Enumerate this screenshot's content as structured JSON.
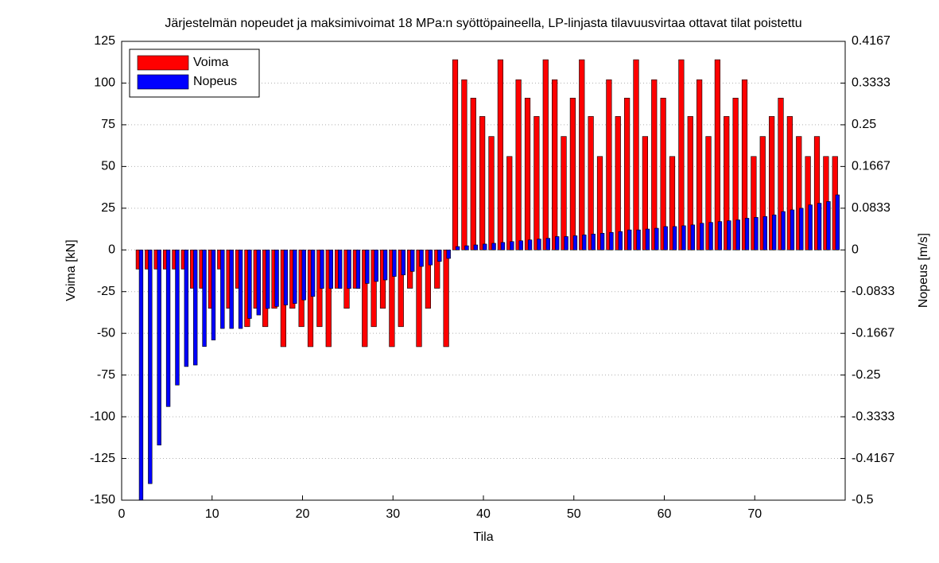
{
  "chart_data": {
    "type": "bar",
    "title": "Järjestelmän nopeudet ja maksimivoimat 18 MPa:n syöttöpaineella, LP-linjasta tilavuusvirtaa ottavat tilat poistettu",
    "xlabel": "Tila",
    "ylabel": "Voima [kN]",
    "y2label": "Nopeus [m/s]",
    "x": [
      2,
      3,
      4,
      5,
      6,
      7,
      8,
      9,
      10,
      11,
      12,
      13,
      14,
      15,
      16,
      17,
      18,
      19,
      20,
      21,
      22,
      23,
      24,
      25,
      26,
      27,
      28,
      29,
      30,
      31,
      32,
      33,
      34,
      35,
      36,
      37,
      38,
      39,
      40,
      41,
      42,
      43,
      44,
      45,
      46,
      47,
      48,
      49,
      50,
      51,
      52,
      53,
      54,
      55,
      56,
      57,
      58,
      59,
      60,
      61,
      62,
      63,
      64,
      65,
      66,
      67,
      68,
      69,
      70,
      71,
      72,
      73,
      74,
      75,
      76,
      77,
      78,
      79
    ],
    "series": [
      {
        "name": "Voima",
        "color": "#ff0000",
        "values": [
          -11.5,
          -11.5,
          -11.5,
          -11.5,
          -11.5,
          -11.5,
          -23,
          -23,
          -35,
          -11.5,
          -35,
          -23,
          -46,
          -35,
          -46,
          -35,
          -58,
          -35,
          -46,
          -58,
          -46,
          -58,
          -23,
          -35,
          -23,
          -58,
          -46,
          -35,
          -58,
          -46,
          -23,
          -58,
          -35,
          -23,
          -58,
          114,
          102,
          91,
          80,
          68,
          114,
          56,
          102,
          91,
          80,
          114,
          102,
          68,
          91,
          114,
          80,
          56,
          102,
          80,
          91,
          114,
          68,
          102,
          91,
          56,
          114,
          80,
          102,
          68,
          114,
          80,
          91,
          102,
          56,
          68,
          80,
          91,
          80,
          68,
          56,
          68,
          56,
          56
        ]
      },
      {
        "name": "Nopeus",
        "color": "#0000ff",
        "axis": "y2",
        "values": [
          -0.5,
          -0.467,
          -0.39,
          -0.313,
          -0.27,
          -0.233,
          -0.23,
          -0.193,
          -0.18,
          -0.157,
          -0.157,
          -0.157,
          -0.137,
          -0.13,
          -0.117,
          -0.113,
          -0.11,
          -0.107,
          -0.1,
          -0.093,
          -0.077,
          -0.077,
          -0.077,
          -0.077,
          -0.077,
          -0.067,
          -0.063,
          -0.06,
          -0.053,
          -0.05,
          -0.043,
          -0.033,
          -0.03,
          -0.023,
          -0.017,
          0.0067,
          0.0083,
          0.01,
          0.0117,
          0.0133,
          0.015,
          0.0167,
          0.0183,
          0.02,
          0.0217,
          0.0233,
          0.0267,
          0.0267,
          0.0283,
          0.03,
          0.0317,
          0.0333,
          0.035,
          0.0367,
          0.04,
          0.04,
          0.0417,
          0.0433,
          0.0467,
          0.0467,
          0.0483,
          0.05,
          0.0533,
          0.055,
          0.0567,
          0.0583,
          0.06,
          0.0633,
          0.065,
          0.0667,
          0.07,
          0.0767,
          0.08,
          0.0833,
          0.09,
          0.0933,
          0.0967,
          0.11
        ]
      }
    ],
    "xlim": [
      0,
      80
    ],
    "xticks": [
      0,
      10,
      20,
      30,
      40,
      50,
      60,
      70
    ],
    "ylim": [
      -150,
      125
    ],
    "yticks": [
      -150,
      -125,
      -100,
      -75,
      -50,
      -25,
      0,
      25,
      50,
      75,
      100,
      125
    ],
    "y2lim": [
      -0.5,
      0.4167
    ],
    "y2ticks": [
      -0.5,
      -0.4167,
      -0.3333,
      -0.25,
      -0.1667,
      -0.0833,
      0,
      0.0833,
      0.1667,
      0.25,
      0.3333,
      0.4167
    ],
    "grid": true,
    "legend": "upper left"
  }
}
